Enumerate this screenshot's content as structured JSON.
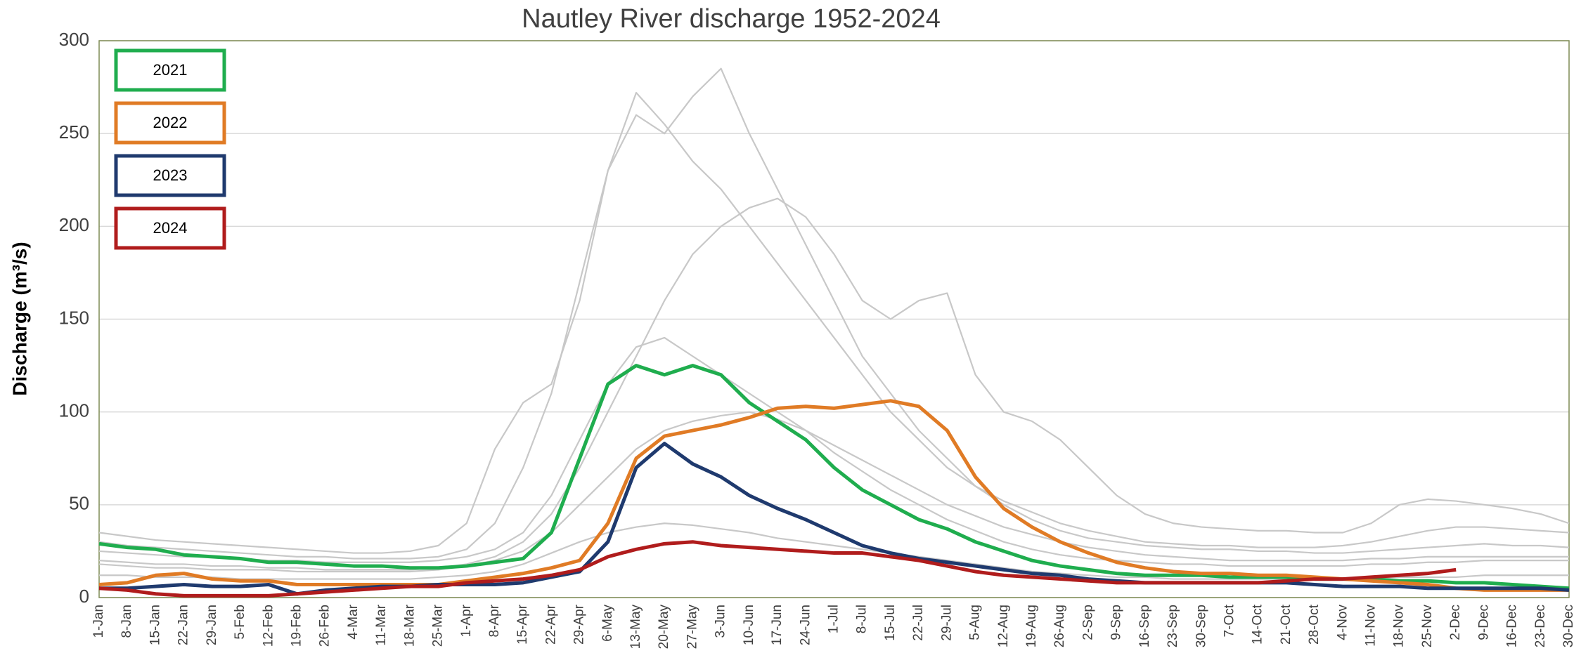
{
  "chart_data": {
    "type": "line",
    "title": "Nautley River discharge 1952-2024",
    "y_label": "Discharge (m³/s)",
    "categories": [
      "1-Jan",
      "8-Jan",
      "15-Jan",
      "22-Jan",
      "29-Jan",
      "5-Feb",
      "12-Feb",
      "19-Feb",
      "26-Feb",
      "4-Mar",
      "11-Mar",
      "18-Mar",
      "25-Mar",
      "1-Apr",
      "8-Apr",
      "15-Apr",
      "22-Apr",
      "29-Apr",
      "6-May",
      "13-May",
      "20-May",
      "27-May",
      "3-Jun",
      "10-Jun",
      "17-Jun",
      "24-Jun",
      "1-Jul",
      "8-Jul",
      "15-Jul",
      "22-Jul",
      "29-Jul",
      "5-Aug",
      "12-Aug",
      "19-Aug",
      "26-Aug",
      "2-Sep",
      "9-Sep",
      "16-Sep",
      "23-Sep",
      "30-Sep",
      "7-Oct",
      "14-Oct",
      "21-Oct",
      "28-Oct",
      "4-Nov",
      "11-Nov",
      "18-Nov",
      "25-Nov",
      "2-Dec",
      "9-Dec",
      "16-Dec",
      "23-Dec",
      "30-Dec"
    ],
    "ylim": [
      0,
      300
    ],
    "yticks": [
      0,
      50,
      100,
      150,
      200,
      250,
      300
    ],
    "grid": true,
    "legend": "upper left",
    "series": [
      {
        "color": "#c8c8c8",
        "values": [
          30,
          28,
          27,
          26,
          25,
          24,
          23,
          22,
          22,
          21,
          21,
          21,
          22,
          26,
          40,
          70,
          110,
          170,
          230,
          260,
          250,
          270,
          285,
          250,
          220,
          190,
          160,
          130,
          110,
          90,
          75,
          60,
          50,
          42,
          36,
          32,
          30,
          28,
          27,
          26,
          26,
          25,
          25,
          24,
          24,
          25,
          26,
          27,
          28,
          29,
          28,
          28,
          27
        ]
      },
      {
        "color": "#c8c8c8",
        "values": [
          35,
          33,
          31,
          30,
          29,
          28,
          27,
          26,
          25,
          24,
          24,
          25,
          28,
          40,
          80,
          105,
          115,
          160,
          230,
          272,
          255,
          235,
          220,
          200,
          180,
          160,
          140,
          120,
          100,
          85,
          70,
          60,
          52,
          46,
          40,
          36,
          33,
          30,
          29,
          28,
          28,
          27,
          27,
          27,
          28,
          30,
          33,
          36,
          38,
          38,
          37,
          36,
          35
        ]
      },
      {
        "color": "#c8c8c8",
        "values": [
          20,
          19,
          18,
          18,
          17,
          17,
          16,
          16,
          15,
          15,
          15,
          15,
          16,
          18,
          22,
          30,
          45,
          70,
          100,
          130,
          160,
          185,
          200,
          210,
          215,
          205,
          185,
          160,
          150,
          160,
          164,
          120,
          100,
          95,
          85,
          70,
          55,
          45,
          40,
          38,
          37,
          36,
          36,
          35,
          35,
          40,
          50,
          53,
          52,
          50,
          48,
          45,
          40
        ]
      },
      {
        "color": "#c8c8c8",
        "values": [
          25,
          24,
          23,
          22,
          22,
          21,
          20,
          20,
          19,
          19,
          19,
          19,
          20,
          22,
          26,
          35,
          55,
          85,
          115,
          135,
          140,
          130,
          120,
          110,
          100,
          90,
          78,
          68,
          58,
          50,
          42,
          36,
          30,
          26,
          23,
          21,
          20,
          19,
          18,
          18,
          17,
          17,
          17,
          17,
          17,
          18,
          18,
          19,
          19,
          20,
          20,
          20,
          20
        ]
      },
      {
        "color": "#c8c8c8",
        "values": [
          12,
          12,
          11,
          11,
          11,
          10,
          10,
          10,
          10,
          10,
          10,
          10,
          11,
          12,
          14,
          18,
          24,
          30,
          35,
          38,
          40,
          39,
          37,
          35,
          32,
          30,
          28,
          26,
          24,
          22,
          20,
          18,
          16,
          14,
          13,
          12,
          11,
          11,
          10,
          10,
          10,
          10,
          10,
          10,
          10,
          10,
          11,
          11,
          11,
          12,
          12,
          12,
          12
        ]
      },
      {
        "color": "#c8c8c8",
        "values": [
          18,
          17,
          16,
          16,
          15,
          15,
          15,
          14,
          14,
          14,
          14,
          14,
          15,
          17,
          20,
          25,
          35,
          50,
          65,
          80,
          90,
          95,
          98,
          100,
          96,
          90,
          82,
          74,
          66,
          58,
          50,
          44,
          38,
          34,
          30,
          27,
          25,
          23,
          22,
          21,
          20,
          20,
          20,
          20,
          20,
          21,
          21,
          22,
          22,
          22,
          22,
          22,
          22
        ]
      },
      {
        "name": "2021",
        "color": "#1fad4e",
        "values": [
          29,
          27,
          26,
          23,
          22,
          21,
          19,
          19,
          18,
          17,
          17,
          16,
          16,
          17,
          19,
          21,
          35,
          75,
          115,
          125,
          120,
          125,
          120,
          105,
          95,
          85,
          70,
          58,
          50,
          42,
          37,
          30,
          25,
          20,
          17,
          15,
          13,
          12,
          12,
          12,
          11,
          11,
          11,
          10,
          10,
          10,
          9,
          9,
          8,
          8,
          7,
          6,
          5
        ]
      },
      {
        "name": "2022",
        "color": "#e07b25",
        "values": [
          7,
          8,
          12,
          13,
          10,
          9,
          9,
          7,
          7,
          7,
          7,
          7,
          7,
          9,
          11,
          13,
          16,
          20,
          40,
          75,
          87,
          90,
          93,
          97,
          102,
          103,
          102,
          104,
          106,
          103,
          90,
          65,
          48,
          38,
          30,
          24,
          19,
          16,
          14,
          13,
          13,
          12,
          12,
          11,
          10,
          9,
          8,
          7,
          5,
          4,
          4,
          4,
          4
        ]
      },
      {
        "name": "2023",
        "color": "#1f3a6e",
        "values": [
          5,
          5,
          6,
          7,
          6,
          6,
          7,
          2,
          4,
          5,
          6,
          6,
          7,
          7,
          7,
          8,
          11,
          14,
          30,
          70,
          83,
          72,
          65,
          55,
          48,
          42,
          35,
          28,
          24,
          21,
          19,
          17,
          15,
          13,
          12,
          10,
          9,
          8,
          8,
          8,
          8,
          8,
          8,
          7,
          6,
          6,
          6,
          5,
          5,
          5,
          5,
          5,
          4
        ]
      },
      {
        "name": "2024",
        "color": "#b01c1c",
        "values": [
          5,
          4,
          2,
          1,
          1,
          1,
          1,
          2,
          3,
          4,
          5,
          6,
          6,
          8,
          9,
          10,
          12,
          15,
          22,
          26,
          29,
          30,
          28,
          27,
          26,
          25,
          24,
          24,
          22,
          20,
          17,
          14,
          12,
          11,
          10,
          9,
          8,
          8,
          8,
          8,
          8,
          8,
          9,
          10,
          10,
          11,
          12,
          13,
          15,
          null,
          null,
          null,
          null
        ]
      }
    ]
  }
}
